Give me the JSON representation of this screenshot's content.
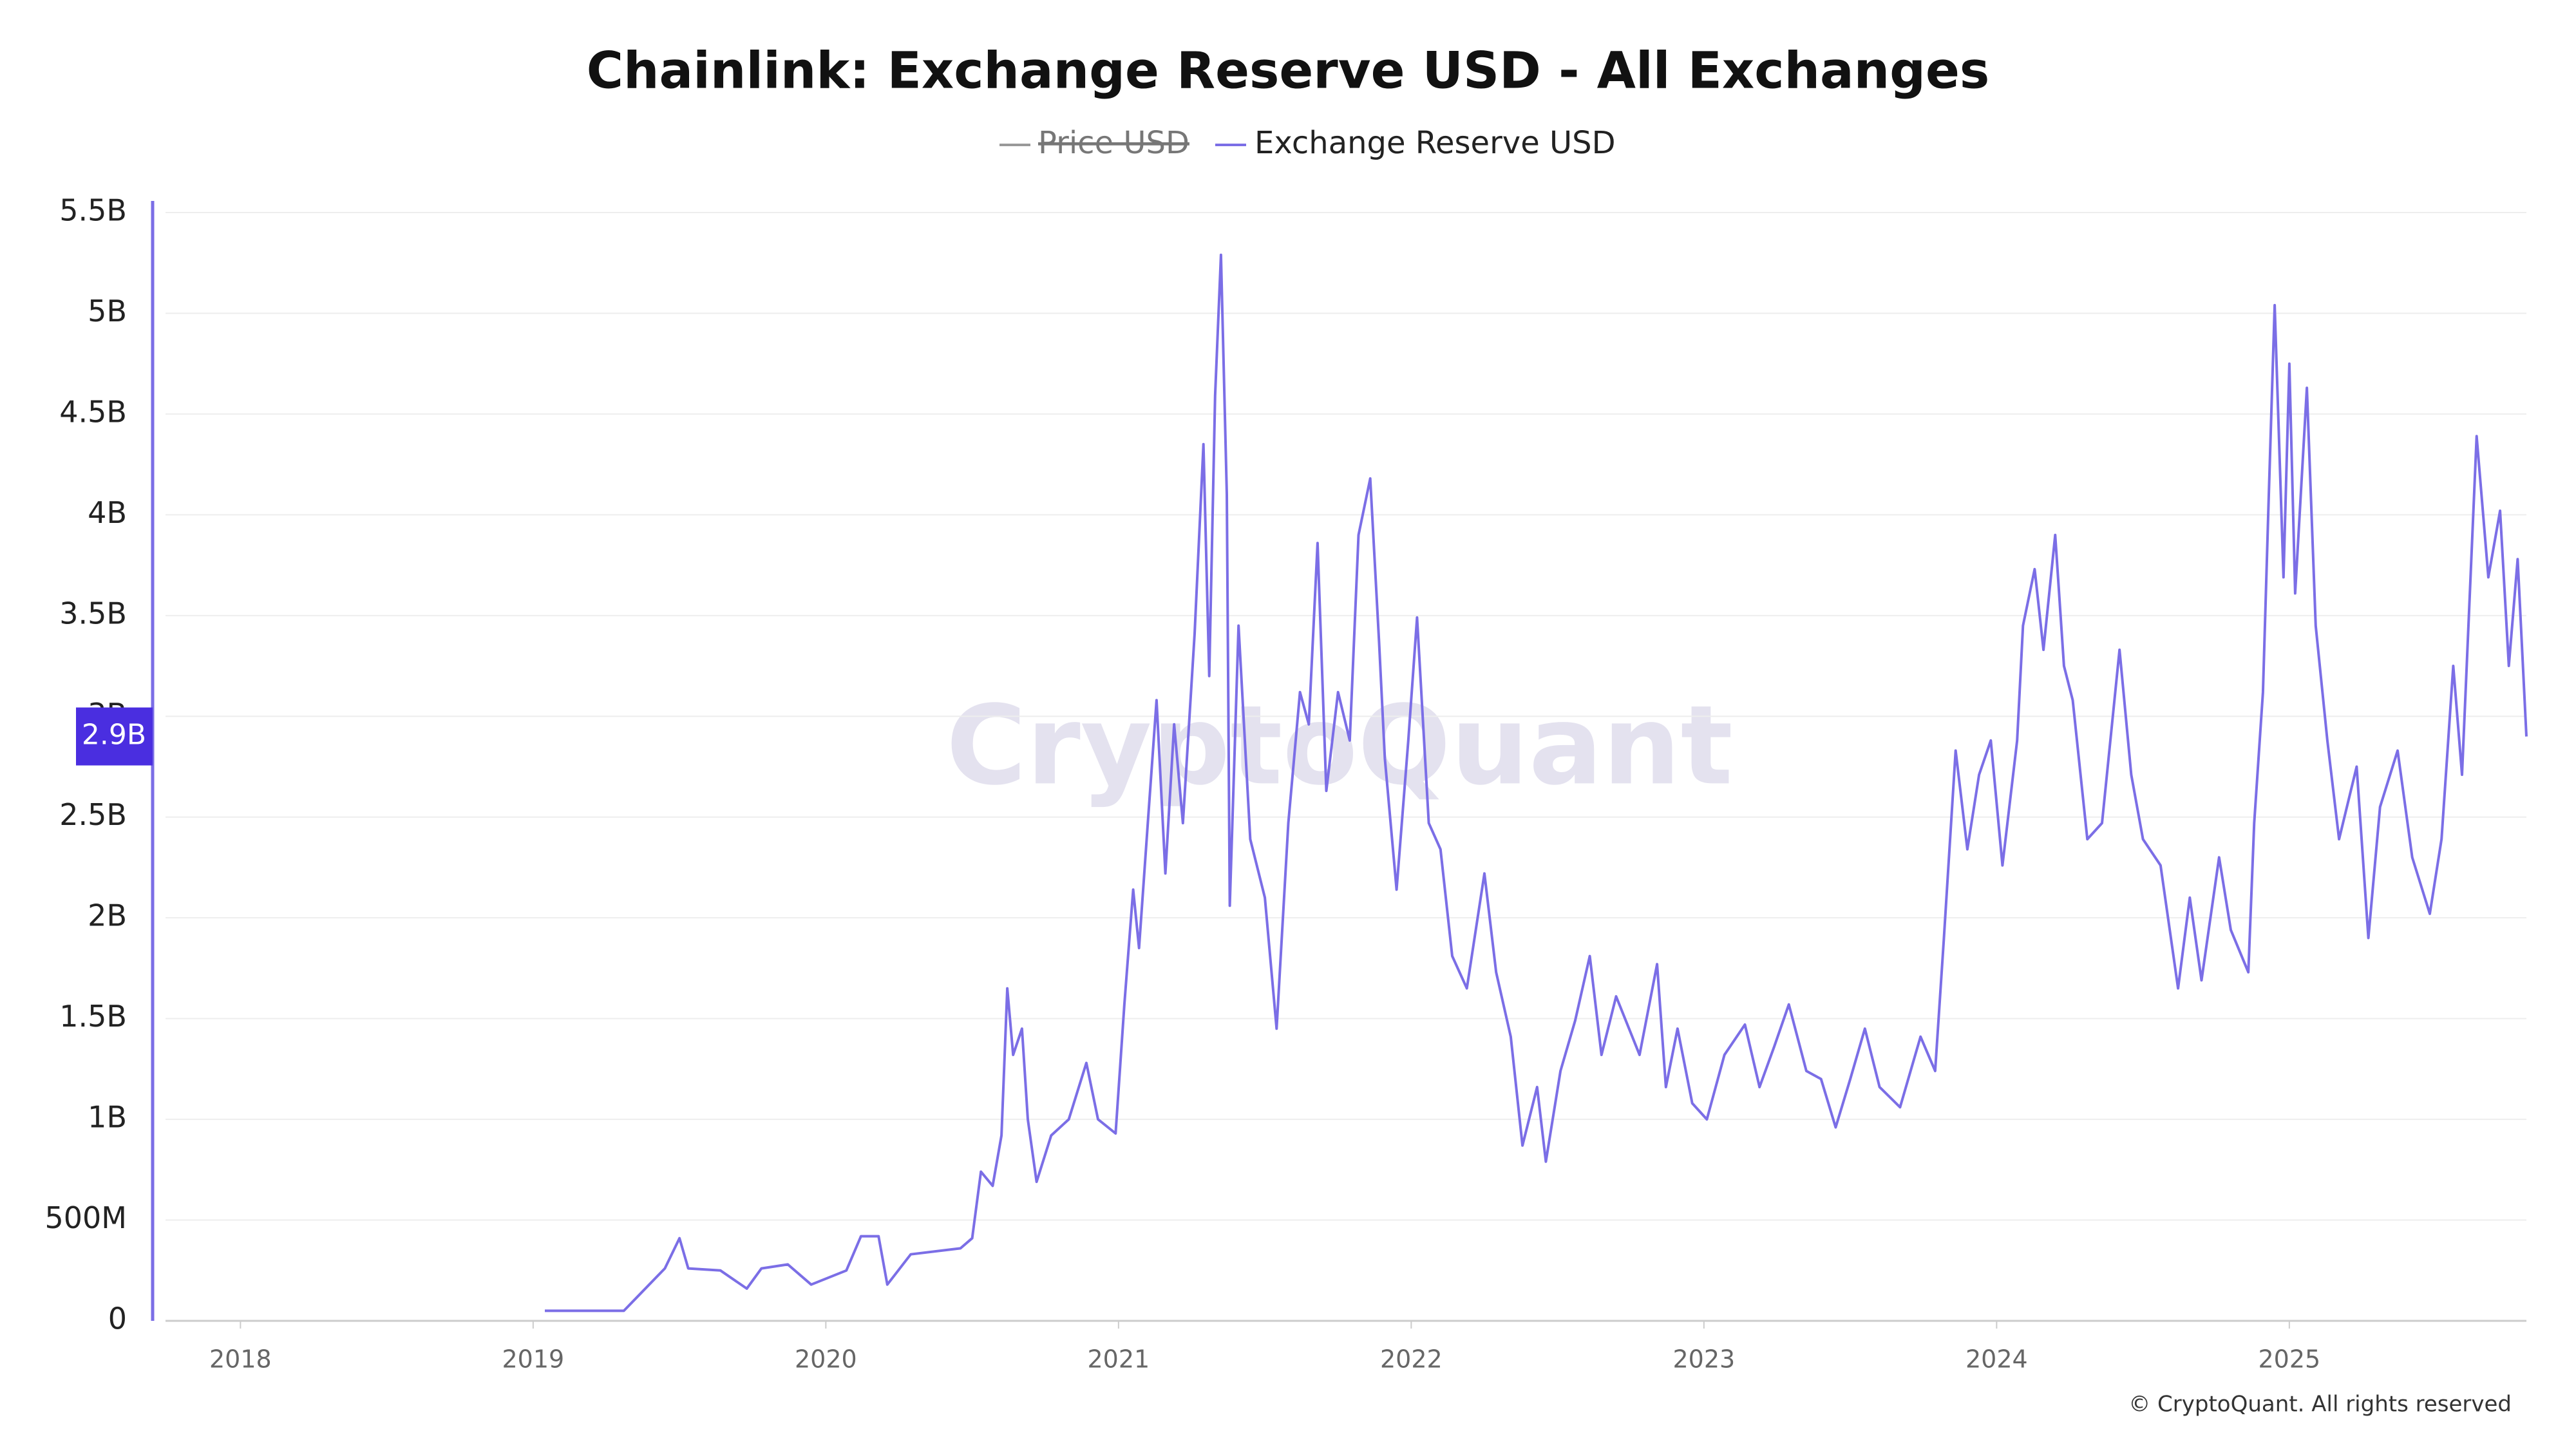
{
  "chart_data": {
    "type": "line",
    "title": "Chainlink: Exchange Reserve USD - All Exchanges",
    "hidden_series": [
      {
        "name": "Price USD",
        "color": "#999999"
      }
    ],
    "series": [
      {
        "name": "Exchange Reserve USD",
        "color": "#7b6ee6",
        "values": [
          0.05,
          0.05,
          0.14,
          0.26,
          0.41,
          0.26,
          0.25,
          0.16,
          0.26,
          0.28,
          0.18,
          0.25,
          0.42,
          0.42,
          0.18,
          0.33,
          0.36,
          0.41,
          0.74,
          0.67,
          0.92,
          1.65,
          1.32,
          1.45,
          1.0,
          0.69,
          0.92,
          1.0,
          1.28,
          1.0,
          0.93,
          1.57,
          2.14,
          1.85,
          2.47,
          3.08,
          2.22,
          2.96,
          2.47,
          3.41,
          4.35,
          3.2,
          4.59,
          5.29,
          4.1,
          2.06,
          3.45,
          2.39,
          2.1,
          1.45,
          2.47,
          3.12,
          2.96,
          3.86,
          2.63,
          3.12,
          2.88,
          3.9,
          4.18,
          3.37,
          2.79,
          2.14,
          2.88,
          3.49,
          2.47,
          2.34,
          1.81,
          1.65,
          2.22,
          1.73,
          1.41,
          0.87,
          1.16,
          0.79,
          1.24,
          1.49,
          1.81,
          1.32,
          1.61,
          1.32,
          1.77,
          1.16,
          1.45,
          1.08,
          1.0,
          1.32,
          1.47,
          1.16,
          1.36,
          1.57,
          1.24,
          1.2,
          0.96,
          1.2,
          1.45,
          1.16,
          1.06,
          1.41,
          1.24,
          1.9,
          2.83,
          2.34,
          2.71,
          2.88,
          2.26,
          2.88,
          3.45,
          3.73,
          3.33,
          3.9,
          3.25,
          3.08,
          2.39,
          2.47,
          3.33,
          2.71,
          2.39,
          2.26,
          1.65,
          2.1,
          1.69,
          2.3,
          1.94,
          1.73,
          2.47,
          3.12,
          4.1,
          5.04,
          3.69,
          4.75,
          3.61,
          4.63,
          3.45,
          2.88,
          2.39,
          2.75,
          1.9,
          2.55,
          2.83,
          2.3,
          2.02,
          2.39,
          3.25,
          2.71,
          4.39,
          3.69,
          4.02,
          3.25,
          3.78,
          2.9
        ]
      }
    ],
    "x": [
      2019.04,
      2019.31,
      2019.37,
      2019.45,
      2019.5,
      2019.53,
      2019.64,
      2019.73,
      2019.78,
      2019.87,
      2019.95,
      2020.07,
      2020.12,
      2020.18,
      2020.21,
      2020.29,
      2020.46,
      2020.5,
      2020.53,
      2020.57,
      2020.6,
      2020.62,
      2020.64,
      2020.67,
      2020.69,
      2020.72,
      2020.77,
      2020.83,
      2020.89,
      2020.93,
      2020.99,
      2021.02,
      2021.05,
      2021.07,
      2021.1,
      2021.13,
      2021.16,
      2021.19,
      2021.22,
      2021.26,
      2021.29,
      2021.31,
      2021.33,
      2021.35,
      2021.37,
      2021.38,
      2021.41,
      2021.45,
      2021.5,
      2021.54,
      2021.58,
      2021.62,
      2021.65,
      2021.68,
      2021.71,
      2021.75,
      2021.79,
      2021.82,
      2021.86,
      2021.89,
      2021.91,
      2021.95,
      2021.99,
      2022.02,
      2022.06,
      2022.1,
      2022.14,
      2022.19,
      2022.25,
      2022.29,
      2022.34,
      2022.38,
      2022.43,
      2022.46,
      2022.51,
      2022.56,
      2022.61,
      2022.65,
      2022.7,
      2022.78,
      2022.84,
      2022.87,
      2022.91,
      2022.96,
      2023.01,
      2023.07,
      2023.14,
      2023.19,
      2023.24,
      2023.29,
      2023.35,
      2023.4,
      2023.45,
      2023.5,
      2023.55,
      2023.6,
      2023.67,
      2023.74,
      2023.79,
      2023.82,
      2023.86,
      2023.9,
      2023.94,
      2023.98,
      2024.02,
      2024.07,
      2024.09,
      2024.13,
      2024.16,
      2024.2,
      2024.23,
      2024.26,
      2024.31,
      2024.36,
      2024.42,
      2024.46,
      2024.5,
      2024.56,
      2024.62,
      2024.66,
      2024.7,
      2024.76,
      2024.8,
      2024.86,
      2024.88,
      2024.91,
      2024.93,
      2024.95,
      2024.98,
      2025.0,
      2025.02,
      2025.06,
      2025.09,
      2025.13,
      2025.17,
      2025.23,
      2025.27,
      2025.31,
      2025.37,
      2025.42,
      2025.48,
      2025.52,
      2025.56,
      2025.59,
      2025.64,
      2025.68,
      2025.72,
      2025.75,
      2025.78,
      2025.81
    ],
    "xlim": [
      2017.7,
      2025.81
    ],
    "xticks": [
      2018,
      2019,
      2020,
      2021,
      2022,
      2023,
      2024,
      2025
    ],
    "ylim": [
      0,
      5.5
    ],
    "yticks": [
      0,
      {
        "value": 0.5,
        "label": "500M"
      },
      {
        "value": 1,
        "label": "1B"
      },
      {
        "value": 1.5,
        "label": "1.5B"
      },
      {
        "value": 2,
        "label": "2B"
      },
      {
        "value": 2.5,
        "label": "2.5B"
      },
      {
        "value": 3,
        "label": "3B"
      },
      {
        "value": 3.5,
        "label": "3.5B"
      },
      {
        "value": 4,
        "label": "4B"
      },
      {
        "value": 4.5,
        "label": "4.5B"
      },
      {
        "value": 5,
        "label": "5B"
      },
      {
        "value": 5.5,
        "label": "5.5B"
      }
    ],
    "last_value_label": {
      "value": 2.9,
      "label": "2.9B"
    },
    "grid": true,
    "watermark": "CryptoQuant",
    "footer": "© CryptoQuant. All rights reserved"
  }
}
